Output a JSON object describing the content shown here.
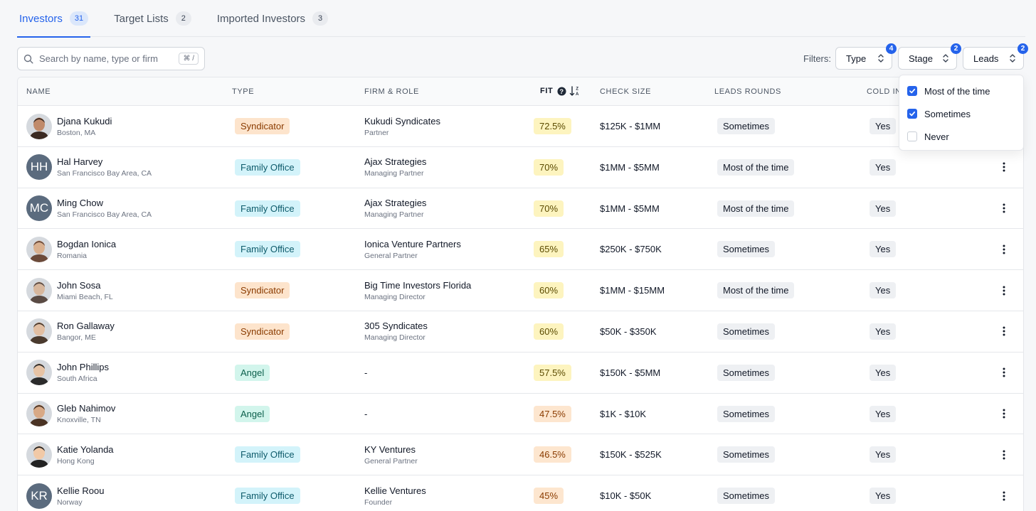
{
  "tabs": [
    {
      "label": "Investors",
      "count": "31"
    },
    {
      "label": "Target Lists",
      "count": "2"
    },
    {
      "label": "Imported Investors",
      "count": "3"
    }
  ],
  "search": {
    "placeholder": "Search by name, type or firm",
    "shortcut": "⌘ /"
  },
  "filters": {
    "label": "Filters:",
    "type": {
      "label": "Type",
      "badge": "4"
    },
    "stage": {
      "label": "Stage",
      "badge": "2"
    },
    "leads": {
      "label": "Leads",
      "badge": "2"
    }
  },
  "columns": {
    "name": "NAME",
    "type": "TYPE",
    "firm": "FIRM & ROLE",
    "fit": "FIT",
    "check": "CHECK SIZE",
    "leads": "LEADS ROUNDS",
    "cold": "COLD IN"
  },
  "rows": [
    {
      "name": "Djana Kukudi",
      "location": "Boston, MA",
      "type": "Syndicator",
      "firm": "Kukudi Syndicates",
      "role": "Partner",
      "fit": "72.5%",
      "check": "$125K - $1MM",
      "leads": "Sometimes",
      "cold": "Yes"
    },
    {
      "name": "Hal Harvey",
      "location": "San Francisco Bay Area, CA",
      "initials": "HH",
      "type": "Family Office",
      "firm": "Ajax Strategies",
      "role": "Managing Partner",
      "fit": "70%",
      "check": "$1MM - $5MM",
      "leads": "Most of the time",
      "cold": "Yes"
    },
    {
      "name": "Ming Chow",
      "location": "San Francisco Bay Area, CA",
      "initials": "MC",
      "type": "Family Office",
      "firm": "Ajax Strategies",
      "role": "Managing Partner",
      "fit": "70%",
      "check": "$1MM - $5MM",
      "leads": "Most of the time",
      "cold": "Yes"
    },
    {
      "name": "Bogdan Ionica",
      "location": "Romania",
      "type": "Family Office",
      "firm": "Ionica Venture Partners",
      "role": "General Partner",
      "fit": "65%",
      "check": "$250K - $750K",
      "leads": "Sometimes",
      "cold": "Yes"
    },
    {
      "name": "John Sosa",
      "location": "Miami Beach, FL",
      "type": "Syndicator",
      "firm": "Big Time Investors Florida",
      "role": "Managing Director",
      "fit": "60%",
      "check": "$1MM - $15MM",
      "leads": "Most of the time",
      "cold": "Yes"
    },
    {
      "name": "Ron Gallaway",
      "location": "Bangor, ME",
      "type": "Syndicator",
      "firm": "305 Syndicates",
      "role": "Managing Director",
      "fit": "60%",
      "check": "$50K - $350K",
      "leads": "Sometimes",
      "cold": "Yes"
    },
    {
      "name": "John Phillips",
      "location": "South Africa",
      "type": "Angel",
      "firm": "-",
      "role": "",
      "fit": "57.5%",
      "check": "$150K - $5MM",
      "leads": "Sometimes",
      "cold": "Yes"
    },
    {
      "name": "Gleb Nahimov",
      "location": "Knoxville, TN",
      "type": "Angel",
      "firm": "-",
      "role": "",
      "fit": "47.5%",
      "check": "$1K - $10K",
      "leads": "Sometimes",
      "cold": "Yes"
    },
    {
      "name": "Katie Yolanda",
      "location": "Hong Kong",
      "type": "Family Office",
      "firm": "KY Ventures",
      "role": "General Partner",
      "fit": "46.5%",
      "check": "$150K - $525K",
      "leads": "Sometimes",
      "cold": "Yes"
    },
    {
      "name": "Kellie Roou",
      "location": "Norway",
      "initials": "KR",
      "type": "Family Office",
      "firm": "Kellie Ventures",
      "role": "Founder",
      "fit": "45%",
      "check": "$10K - $50K",
      "leads": "Sometimes",
      "cold": "Yes"
    }
  ],
  "dropdown": {
    "options": [
      {
        "label": "Most of the time",
        "checked": true
      },
      {
        "label": "Sometimes",
        "checked": true
      },
      {
        "label": "Never",
        "checked": false
      }
    ]
  }
}
